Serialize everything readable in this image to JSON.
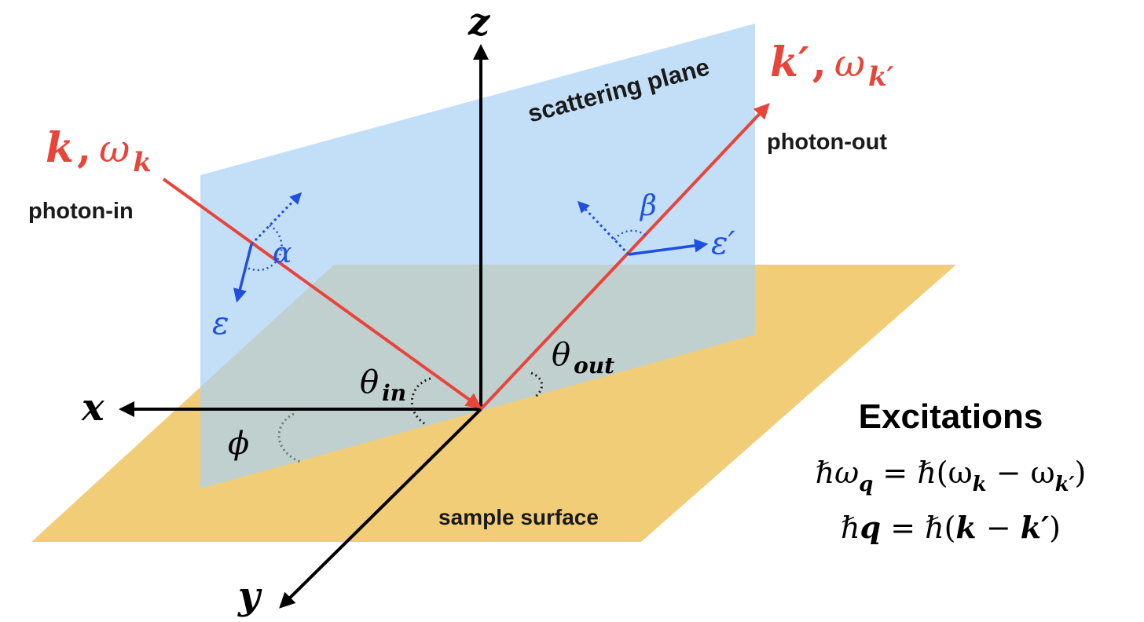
{
  "labels": {
    "scattering_plane": "scattering plane",
    "sample_surface": "sample surface",
    "photon_in": "photon-in",
    "photon_out": "photon-out",
    "excitations_title": "Excitations"
  },
  "axes": {
    "x": "x",
    "y": "y",
    "z": "z"
  },
  "incoming": {
    "k": "k",
    "comma": ",",
    "omega": "ω",
    "sub": "k"
  },
  "outgoing": {
    "k": "k′",
    "comma": ",",
    "omega": "ω",
    "sub": "k′"
  },
  "angles": {
    "alpha": "α",
    "beta": "β",
    "phi": "ϕ",
    "theta": "θ",
    "theta_in_sub": "in",
    "theta_out_sub": "out"
  },
  "polarization": {
    "epsilon_in": "ε",
    "epsilon_out": "ε′"
  },
  "equations": {
    "eq1": {
      "hbar": "ℏ",
      "omega": "ω",
      "q": "q",
      "mid1": " = ℏ(ω",
      "k": "k",
      "mid2": " − ω",
      "kp": "k′",
      "end": ")"
    },
    "eq2": {
      "lead": "ℏ",
      "q": "q",
      "mid": " = ℏ(",
      "k": "k",
      "minus": " − ",
      "kp": "k′",
      "end": ")"
    }
  },
  "colors": {
    "scattering_plane": "#c3e0f7",
    "sample_surface": "#f1cd78",
    "overlap": "#b9c29c",
    "photon": "#e8443a",
    "polarization": "#1f4fe0",
    "axis": "#000000"
  }
}
